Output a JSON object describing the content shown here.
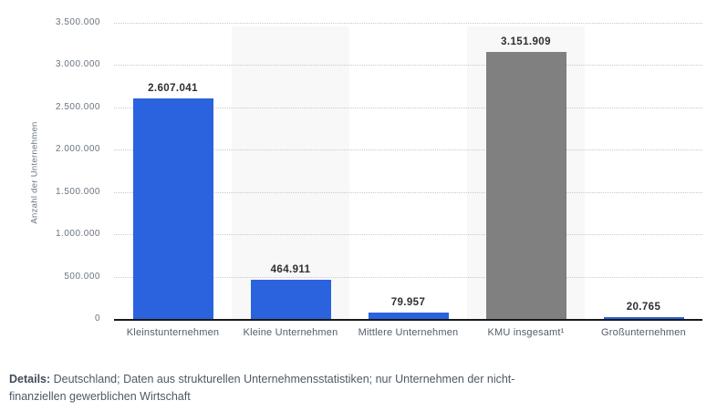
{
  "chart_data": {
    "type": "bar",
    "title": "",
    "xlabel": "",
    "ylabel": "Anzahl der Unternehmen",
    "categories": [
      "Kleinstunternehmen",
      "Kleine Unternehmen",
      "Mittlere Unternehmen",
      "KMU insgesamt¹",
      "Großunternehmen"
    ],
    "values": [
      2607041,
      464911,
      79957,
      3151909,
      20765
    ],
    "value_labels": [
      "2.607.041",
      "464.911",
      "79.957",
      "3.151.909",
      "20.765"
    ],
    "bar_colors": [
      "#2a63dd",
      "#2a63dd",
      "#2a63dd",
      "#808080",
      "#2a63dd"
    ],
    "ylim": [
      0,
      3500000
    ],
    "yticks": [
      0,
      500000,
      1000000,
      1500000,
      2000000,
      2500000,
      3000000,
      3500000
    ],
    "ytick_labels": [
      "0",
      "500.000",
      "1.000.000",
      "1.500.000",
      "2.000.000",
      "2.500.000",
      "3.000.000",
      "3.500.000"
    ],
    "grid": "horizontal-dotted",
    "band_columns": [
      1,
      3
    ],
    "legend_position": "none"
  },
  "colors": {
    "bar_blue": "#2a63dd",
    "bar_gray": "#808080",
    "column_band": "#f8f8f8",
    "gridline": "#c9c9c9",
    "axis_line": "#17181a",
    "tick_label": "#6a7380",
    "value_label": "#2d2f33",
    "footer_text": "#4d5866"
  },
  "footer": {
    "details_label": "Details:",
    "details_text": " Deutschland; Daten aus strukturellen Unternehmensstatistiken; nur Unternehmen der nicht-finanziellen gewerblichen Wirtschaft"
  }
}
